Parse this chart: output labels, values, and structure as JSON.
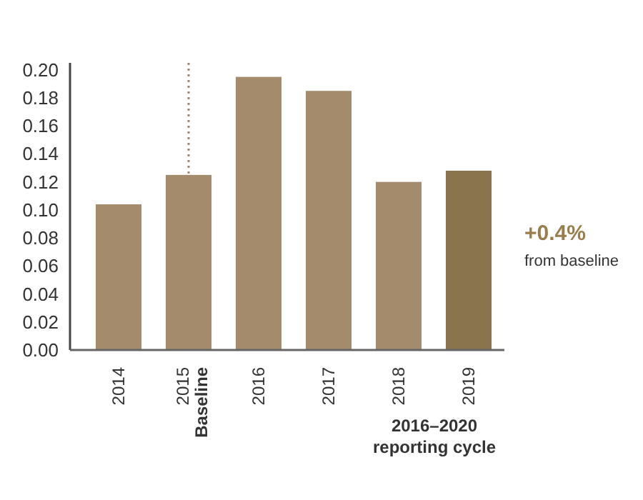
{
  "chart_data": {
    "type": "bar",
    "categories": [
      "2014",
      "2015",
      "2016",
      "2017",
      "2018",
      "2019"
    ],
    "values": [
      0.104,
      0.125,
      0.195,
      0.185,
      0.12,
      0.128
    ],
    "colors": [
      "#a38b6b",
      "#a38b6b",
      "#a38b6b",
      "#a38b6b",
      "#a38b6b",
      "#8a744e"
    ],
    "ylim": [
      0,
      0.205
    ],
    "yticks": [
      {
        "value": 0,
        "label": "0.00"
      },
      {
        "value": 0.02,
        "label": "0.02"
      },
      {
        "value": 0.04,
        "label": "0.04"
      },
      {
        "value": 0.06,
        "label": "0.06"
      },
      {
        "value": 0.08,
        "label": "0.08"
      },
      {
        "value": 0.1,
        "label": "0.10"
      },
      {
        "value": 0.12,
        "label": "0.12"
      },
      {
        "value": 0.14,
        "label": "0.14"
      },
      {
        "value": 0.16,
        "label": "0.16"
      },
      {
        "value": 0.18,
        "label": "0.18"
      },
      {
        "value": 0.2,
        "label": "0.20"
      }
    ],
    "ref_lines": [
      {
        "axis": "x",
        "value": "2015",
        "label": "Baseline",
        "color": "#a38b6b",
        "line_style": "dotted"
      }
    ],
    "annotations": [
      "+0.4%",
      "from baseline",
      "2016–2020 reporting cycle"
    ]
  }
}
